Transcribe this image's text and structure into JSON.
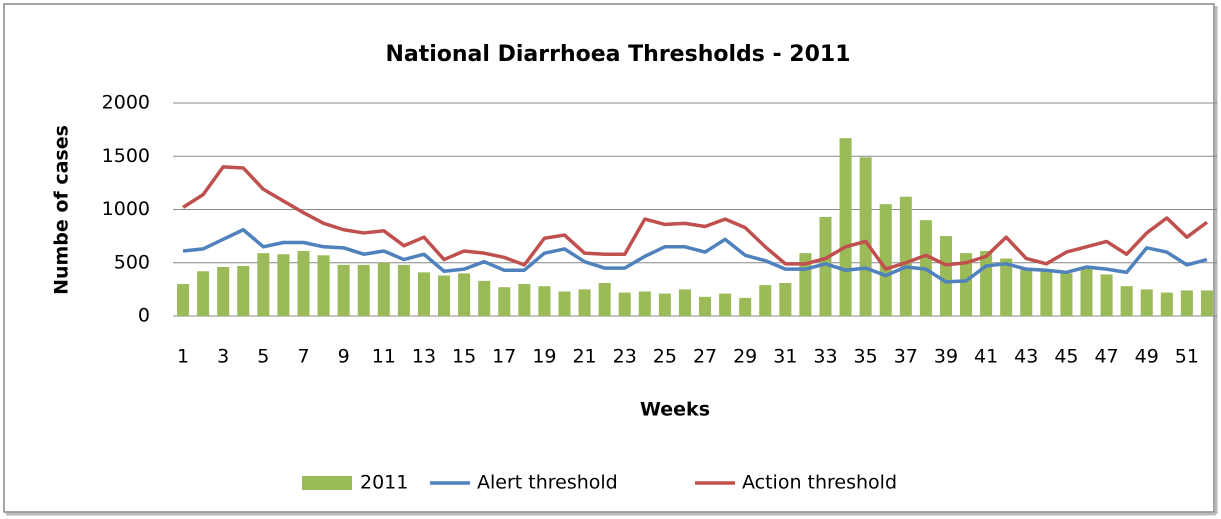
{
  "chart_data": {
    "type": "bar",
    "title": "National Diarrhoea Thresholds - 2011",
    "x_label": "Weeks",
    "y_label": "Numbe of cases",
    "categories": [
      1,
      null,
      3,
      null,
      5,
      null,
      7,
      null,
      9,
      null,
      11,
      null,
      13,
      null,
      15,
      null,
      17,
      null,
      19,
      null,
      21,
      null,
      23,
      null,
      25,
      null,
      27,
      null,
      29,
      null,
      31,
      null,
      33,
      null,
      35,
      null,
      37,
      null,
      39,
      null,
      41,
      null,
      43,
      null,
      45,
      null,
      47,
      null,
      49,
      null,
      51,
      null
    ],
    "series": [
      {
        "name": "2011",
        "type": "bar",
        "color": "#9bbb59",
        "values": [
          300,
          420,
          460,
          470,
          590,
          580,
          610,
          570,
          480,
          480,
          500,
          480,
          410,
          380,
          400,
          330,
          270,
          300,
          280,
          230,
          250,
          310,
          220,
          230,
          210,
          250,
          180,
          210,
          170,
          290,
          310,
          590,
          930,
          1670,
          1490,
          1050,
          1120,
          900,
          750,
          590,
          610,
          540,
          450,
          430,
          400,
          450,
          390,
          280,
          250,
          220,
          240,
          240
        ]
      },
      {
        "name": "Alert threshold",
        "type": "line",
        "color": "#4f81bd",
        "values": [
          610,
          630,
          720,
          810,
          650,
          690,
          690,
          650,
          640,
          580,
          610,
          530,
          580,
          420,
          440,
          510,
          430,
          430,
          590,
          630,
          510,
          450,
          450,
          560,
          650,
          650,
          600,
          720,
          570,
          520,
          440,
          440,
          490,
          430,
          450,
          380,
          460,
          440,
          320,
          330,
          470,
          490,
          440,
          430,
          410,
          460,
          440,
          410,
          640,
          600,
          480,
          530
        ]
      },
      {
        "name": "Action threshold",
        "type": "line",
        "color": "#c0504d",
        "values": [
          1020,
          1140,
          1400,
          1390,
          1190,
          1080,
          970,
          870,
          810,
          780,
          800,
          660,
          740,
          530,
          610,
          590,
          550,
          480,
          730,
          760,
          590,
          580,
          580,
          910,
          860,
          870,
          840,
          910,
          830,
          650,
          490,
          490,
          540,
          650,
          700,
          440,
          500,
          570,
          480,
          500,
          560,
          740,
          540,
          490,
          600,
          650,
          700,
          580,
          780,
          920,
          740,
          880
        ]
      }
    ],
    "ylim": [
      0,
      2000
    ],
    "yticks": [
      0,
      500,
      1000,
      1500,
      2000
    ],
    "grid": true,
    "legend": "bottom"
  }
}
